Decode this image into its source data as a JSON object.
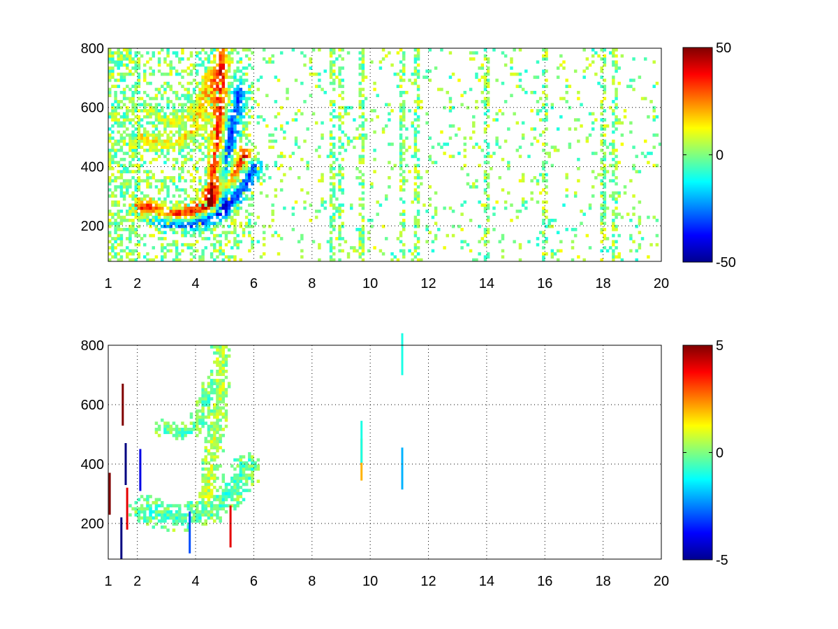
{
  "chart_data": [
    {
      "type": "heatmap",
      "title": "",
      "xlabel": "",
      "ylabel": "",
      "xlim": [
        1,
        20
      ],
      "ylim": [
        80,
        800
      ],
      "x_ticks": [
        1,
        2,
        4,
        6,
        8,
        10,
        12,
        14,
        16,
        18,
        20
      ],
      "y_ticks": [
        200,
        400,
        600,
        800
      ],
      "grid": true,
      "colormap": "jet",
      "colorbar": {
        "clim": [
          -50,
          50
        ],
        "ticks": [
          -50,
          0,
          50
        ]
      },
      "features": [
        {
          "name": "lower-arc",
          "x": [
            2.2,
            2.8,
            3.4,
            4.0,
            4.5,
            4.9,
            5.3,
            5.7
          ],
          "y": [
            265,
            240,
            238,
            250,
            275,
            315,
            370,
            440
          ],
          "value": 38,
          "width": 45
        },
        {
          "name": "lower-arc-shadow",
          "x": [
            2.6,
            3.2,
            3.8,
            4.3,
            4.8,
            5.2,
            5.6,
            6.0
          ],
          "y": [
            225,
            205,
            205,
            220,
            245,
            285,
            335,
            400
          ],
          "value": -35,
          "width": 40
        },
        {
          "name": "vertical-ridge",
          "x": [
            4.5,
            4.65,
            4.75,
            4.85,
            4.9,
            4.9
          ],
          "y": [
            300,
            400,
            500,
            600,
            700,
            790
          ],
          "value": 35,
          "width": 0.35
        },
        {
          "name": "upper-arc",
          "x": [
            2.2,
            2.8,
            3.4,
            4.0,
            4.4,
            4.7
          ],
          "y": [
            500,
            470,
            480,
            530,
            610,
            720
          ],
          "value": 15,
          "width": 35
        },
        {
          "name": "upper-arc-b",
          "x": [
            2.5,
            3.0,
            3.6,
            4.1,
            4.5
          ],
          "y": [
            590,
            555,
            560,
            610,
            700
          ],
          "value": 10,
          "width": 30
        },
        {
          "name": "ridge-shadow",
          "x": [
            4.9,
            5.1,
            5.3,
            5.5
          ],
          "y": [
            300,
            420,
            550,
            650
          ],
          "value": -30,
          "width": 0.4
        }
      ],
      "strong_columns_x": [
        1.1,
        1.2,
        1.3,
        1.5,
        1.6,
        2.0,
        8.7,
        9.0,
        9.7,
        11.1,
        11.6,
        14.0,
        16.0,
        18.0,
        18.4
      ]
    },
    {
      "type": "heatmap",
      "title": "",
      "xlabel": "",
      "ylabel": "",
      "xlim": [
        1,
        20
      ],
      "ylim": [
        80,
        800
      ],
      "x_ticks": [
        1,
        2,
        4,
        6,
        8,
        10,
        12,
        14,
        16,
        18,
        20
      ],
      "y_ticks": [
        200,
        400,
        600,
        800
      ],
      "grid": true,
      "colormap": "jet",
      "colorbar": {
        "clim": [
          -5,
          5
        ],
        "ticks": [
          -5,
          0,
          5
        ]
      },
      "features": [
        {
          "name": "lower-band",
          "x": [
            2.3,
            2.9,
            3.5,
            4.1,
            4.6,
            5.0,
            5.4,
            5.8
          ],
          "y": [
            245,
            225,
            220,
            230,
            250,
            285,
            330,
            390
          ],
          "value": -0.5,
          "width": 50
        },
        {
          "name": "vertical-ridge",
          "x": [
            4.4,
            4.55,
            4.7,
            4.8,
            4.85,
            4.85
          ],
          "y": [
            300,
            400,
            500,
            600,
            700,
            780
          ],
          "value": 0.7,
          "width": 0.35
        },
        {
          "name": "upper-arc",
          "x": [
            2.9,
            3.4,
            3.9,
            4.3,
            4.6
          ],
          "y": [
            520,
            500,
            520,
            580,
            670
          ],
          "value": -0.3,
          "width": 30
        }
      ],
      "specks": [
        {
          "x": 1.05,
          "y": 300,
          "value": 5
        },
        {
          "x": 1.45,
          "y": 150,
          "value": -5
        },
        {
          "x": 1.5,
          "y": 600,
          "value": 5
        },
        {
          "x": 1.6,
          "y": 400,
          "value": -5
        },
        {
          "x": 1.65,
          "y": 250,
          "value": 4
        },
        {
          "x": 2.1,
          "y": 380,
          "value": -4
        },
        {
          "x": 9.7,
          "y": 415,
          "value": 2
        },
        {
          "x": 9.7,
          "y": 475,
          "value": -1
        },
        {
          "x": 11.1,
          "y": 385,
          "value": -2
        },
        {
          "x": 11.1,
          "y": 770,
          "value": -1
        },
        {
          "x": 5.2,
          "y": 190,
          "value": 4
        },
        {
          "x": 3.8,
          "y": 170,
          "value": -3
        }
      ]
    }
  ]
}
